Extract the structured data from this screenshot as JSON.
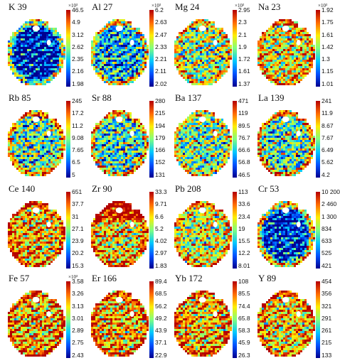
{
  "colors": {
    "jet": [
      "#00008f",
      "#0050ff",
      "#00c8ff",
      "#7fff7f",
      "#ffee00",
      "#ff6a00",
      "#b40000"
    ],
    "background": "#ffffff"
  },
  "panels": [
    {
      "title": "K 39",
      "exponent": "×10³",
      "ticks": [
        "46.5",
        "4.9",
        "3.12",
        "2.62",
        "2.35",
        "2.16",
        "1.98"
      ],
      "bias": -0.3,
      "map": "k"
    },
    {
      "title": "Al 27",
      "exponent": "×10³",
      "ticks": [
        "6.2",
        "2.63",
        "2.47",
        "2.33",
        "2.21",
        "2.11",
        "2.02"
      ],
      "bias": -0.2,
      "map": "al"
    },
    {
      "title": "Mg 24",
      "exponent": "×10³",
      "ticks": [
        "2.95",
        "2.3",
        "2.1",
        "1.9",
        "1.72",
        "1.61",
        "1.37"
      ],
      "bias": 0.05,
      "map": "mg"
    },
    {
      "title": "Na 23",
      "exponent": "×10³",
      "ticks": [
        "1.92",
        "1.75",
        "1.61",
        "1.42",
        "1.3",
        "1.15",
        "1.01"
      ],
      "bias": 0.15,
      "map": "na"
    },
    {
      "title": "Rb 85",
      "exponent": "",
      "ticks": [
        "245",
        "17.2",
        "11.2",
        "9.08",
        "7.65",
        "6.5",
        "5"
      ],
      "bias": -0.05,
      "map": "rb"
    },
    {
      "title": "Sr 88",
      "exponent": "",
      "ticks": [
        "280",
        "215",
        "194",
        "179",
        "166",
        "152",
        "131"
      ],
      "bias": -0.1,
      "map": "sr"
    },
    {
      "title": "Ba 137",
      "exponent": "",
      "ticks": [
        "471",
        "119",
        "89.5",
        "76.7",
        "66.6",
        "56.8",
        "46.5"
      ],
      "bias": 0.0,
      "map": "ba"
    },
    {
      "title": "La 139",
      "exponent": "",
      "ticks": [
        "241",
        "11.9",
        "8.67",
        "7.67",
        "6.49",
        "5.62",
        "4.2"
      ],
      "bias": -0.05,
      "map": "la"
    },
    {
      "title": "Ce 140",
      "exponent": "",
      "ticks": [
        "651",
        "37.7",
        "31",
        "27.1",
        "23.9",
        "20.2",
        "15.3"
      ],
      "bias": 0.25,
      "map": "ce"
    },
    {
      "title": "Zr 90",
      "exponent": "",
      "ticks": [
        "33.3",
        "9.71",
        "6.6",
        "5.2",
        "4.02",
        "2.97",
        "1.83"
      ],
      "bias": 0.2,
      "map": "zr"
    },
    {
      "title": "Pb 208",
      "exponent": "",
      "ticks": [
        "113",
        "33.6",
        "23.4",
        "19",
        "15.5",
        "12.2",
        "8.01"
      ],
      "bias": 0.1,
      "map": "pb"
    },
    {
      "title": "Cr 53",
      "exponent": "",
      "ticks": [
        "10 200",
        "2 460",
        "1 300",
        "834",
        "633",
        "525",
        "421"
      ],
      "bias": -0.15,
      "map": "cr"
    },
    {
      "title": "Fe 57",
      "exponent": "×10³",
      "ticks": [
        "3.58",
        "3.26",
        "3.13",
        "3.01",
        "2.89",
        "2.75",
        "2.43"
      ],
      "bias": 0.25,
      "map": "fe"
    },
    {
      "title": "Er 166",
      "exponent": "",
      "ticks": [
        "89.4",
        "68.5",
        "56.2",
        "49.2",
        "43.9",
        "37.1",
        "22.9"
      ],
      "bias": 0.25,
      "map": "er"
    },
    {
      "title": "Yb 172",
      "exponent": "",
      "ticks": [
        "108",
        "85.5",
        "74.4",
        "65.8",
        "58.3",
        "45.9",
        "26.3"
      ],
      "bias": 0.25,
      "map": "yb"
    },
    {
      "title": "Y 89",
      "exponent": "",
      "ticks": [
        "454",
        "356",
        "321",
        "291",
        "261",
        "215",
        "133"
      ],
      "bias": 0.2,
      "map": "y"
    }
  ]
}
